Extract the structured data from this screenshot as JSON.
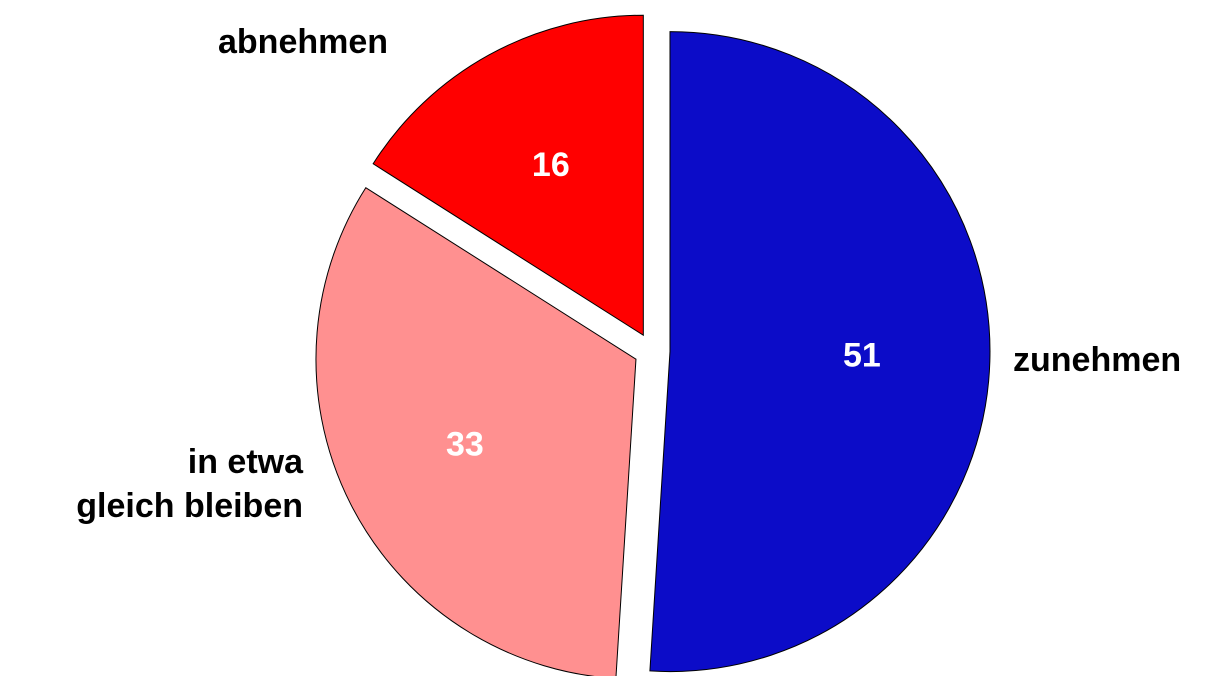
{
  "chart_data": {
    "type": "pie",
    "categories": [
      "zunehmen",
      "in etwa\ngleich bleiben",
      "abnehmen"
    ],
    "values": [
      51,
      33,
      16
    ],
    "colors": [
      "#0c0cc8",
      "#ff9090",
      "#ff0000"
    ]
  }
}
